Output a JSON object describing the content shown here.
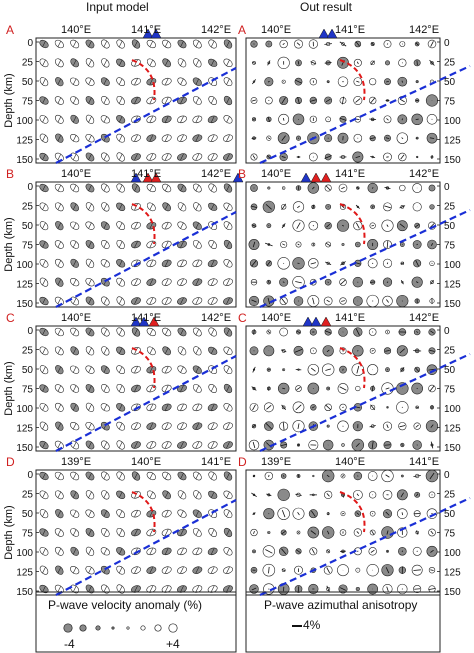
{
  "titles": {
    "left": "Input model",
    "right": "Out result"
  },
  "ylabel": "Depth (km)",
  "depth_ticks": [
    "0",
    "25",
    "50",
    "75",
    "100",
    "125",
    "150"
  ],
  "panels": [
    {
      "letter": "A",
      "lon_labels": [
        "140°E",
        "141°E",
        "142°E"
      ]
    },
    {
      "letter": "B",
      "lon_labels": [
        "140°E",
        "141°E",
        "142°E"
      ]
    },
    {
      "letter": "C",
      "lon_labels": [
        "140°E",
        "141°E",
        "142°E"
      ]
    },
    {
      "letter": "D",
      "lon_labels": [
        "139°E",
        "140°E",
        "141°E"
      ]
    }
  ],
  "legend": {
    "velocity_title": "P-wave velocity anomaly (%)",
    "velocity_min": "-4",
    "velocity_max": "+4",
    "anisotropy_title": "P-wave azimuthal anisotropy",
    "anisotropy_scale": "4%"
  },
  "colors": {
    "slab": "#1a2fd6",
    "wedge": "#e01818",
    "volcano_red": "#e02020",
    "volcano_blue": "#1f35c8",
    "marker_fill": "#8a8a8a"
  }
}
